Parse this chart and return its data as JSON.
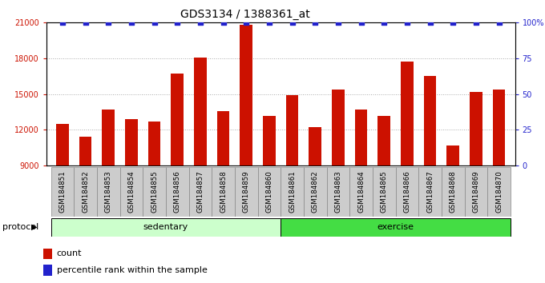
{
  "title": "GDS3134 / 1388361_at",
  "samples": [
    "GSM184851",
    "GSM184852",
    "GSM184853",
    "GSM184854",
    "GSM184855",
    "GSM184856",
    "GSM184857",
    "GSM184858",
    "GSM184859",
    "GSM184860",
    "GSM184861",
    "GSM184862",
    "GSM184863",
    "GSM184864",
    "GSM184865",
    "GSM184866",
    "GSM184867",
    "GSM184868",
    "GSM184869",
    "GSM184870"
  ],
  "counts": [
    12500,
    11400,
    13700,
    12900,
    12700,
    16700,
    18100,
    13600,
    20800,
    13200,
    14900,
    12200,
    15400,
    13700,
    13200,
    17700,
    16500,
    10700,
    15200,
    15400
  ],
  "percentile": [
    100,
    100,
    100,
    100,
    100,
    100,
    100,
    100,
    100,
    100,
    100,
    100,
    100,
    100,
    100,
    100,
    100,
    100,
    100,
    100
  ],
  "sedentary_count": 10,
  "exercise_count": 10,
  "bar_color": "#cc1100",
  "percentile_color": "#2222cc",
  "sedentary_bg": "#ccffcc",
  "exercise_bg": "#44dd44",
  "label_bg": "#cccccc",
  "ylim_left": [
    9000,
    21000
  ],
  "ylim_right": [
    0,
    100
  ],
  "yticks_left": [
    9000,
    12000,
    15000,
    18000,
    21000
  ],
  "yticks_right": [
    0,
    25,
    50,
    75,
    100
  ],
  "ytick_labels_right": [
    "0",
    "25",
    "50",
    "75",
    "100%"
  ],
  "protocol_label": "protocol",
  "sedentary_label": "sedentary",
  "exercise_label": "exercise",
  "legend_count_label": "count",
  "legend_percentile_label": "percentile rank within the sample",
  "grid_color": "#aaaaaa",
  "title_fontsize": 10,
  "tick_fontsize": 7,
  "bar_width": 0.55
}
